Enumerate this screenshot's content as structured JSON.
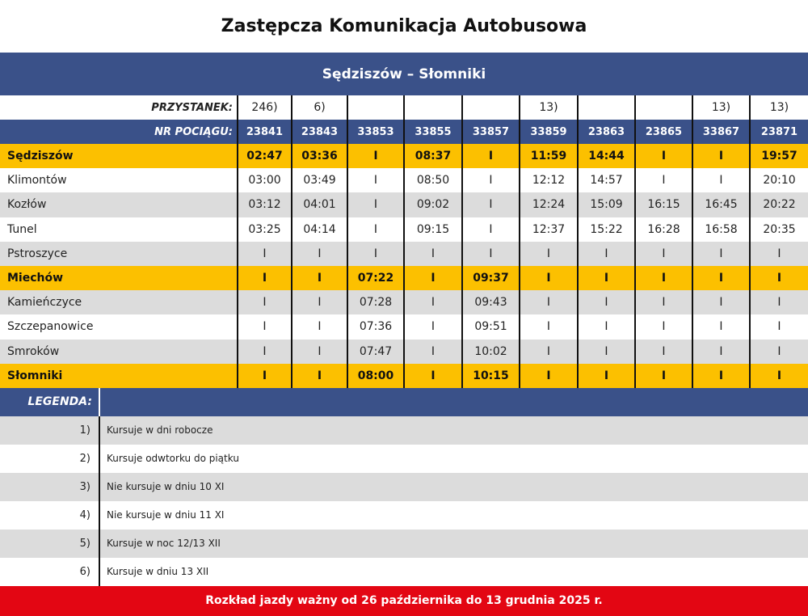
{
  "title": "Zastępcza Komunikacja Autobusowa",
  "route": "Sędziszów – Słomniki",
  "stop_header": "PRZYSTANEK:",
  "train_header": "NR POCIĄGU:",
  "notes": [
    "246)",
    "6)",
    "",
    "",
    "",
    "13)",
    "",
    "",
    "13)",
    "13)"
  ],
  "trains": [
    "23841",
    "23843",
    "33853",
    "33855",
    "33857",
    "33859",
    "23863",
    "23865",
    "33867",
    "23871"
  ],
  "stops": [
    {
      "name": "Sędziszów",
      "style": "yellow",
      "times": [
        "02:47",
        "03:36",
        "I",
        "08:37",
        "I",
        "11:59",
        "14:44",
        "I",
        "I",
        "19:57"
      ]
    },
    {
      "name": "Klimontów",
      "style": "white",
      "times": [
        "03:00",
        "03:49",
        "I",
        "08:50",
        "I",
        "12:12",
        "14:57",
        "I",
        "I",
        "20:10"
      ]
    },
    {
      "name": "Kozłów",
      "style": "gray",
      "times": [
        "03:12",
        "04:01",
        "I",
        "09:02",
        "I",
        "12:24",
        "15:09",
        "16:15",
        "16:45",
        "20:22"
      ]
    },
    {
      "name": "Tunel",
      "style": "white",
      "times": [
        "03:25",
        "04:14",
        "I",
        "09:15",
        "I",
        "12:37",
        "15:22",
        "16:28",
        "16:58",
        "20:35"
      ]
    },
    {
      "name": "Pstroszyce",
      "style": "gray",
      "times": [
        "I",
        "I",
        "I",
        "I",
        "I",
        "I",
        "I",
        "I",
        "I",
        "I"
      ]
    },
    {
      "name": "Miechów",
      "style": "yellow",
      "times": [
        "I",
        "I",
        "07:22",
        "I",
        "09:37",
        "I",
        "I",
        "I",
        "I",
        "I"
      ]
    },
    {
      "name": "Kamieńczyce",
      "style": "gray",
      "times": [
        "I",
        "I",
        "07:28",
        "I",
        "09:43",
        "I",
        "I",
        "I",
        "I",
        "I"
      ]
    },
    {
      "name": "Szczepanowice",
      "style": "white",
      "times": [
        "I",
        "I",
        "07:36",
        "I",
        "09:51",
        "I",
        "I",
        "I",
        "I",
        "I"
      ]
    },
    {
      "name": "Smroków",
      "style": "gray",
      "times": [
        "I",
        "I",
        "07:47",
        "I",
        "10:02",
        "I",
        "I",
        "I",
        "I",
        "I"
      ]
    },
    {
      "name": "Słomniki",
      "style": "yellow",
      "times": [
        "I",
        "I",
        "08:00",
        "I",
        "10:15",
        "I",
        "I",
        "I",
        "I",
        "I"
      ]
    }
  ],
  "legend": {
    "label": "LEGENDA:",
    "items": [
      {
        "num": "1)",
        "text": "Kursuje w dni robocze"
      },
      {
        "num": "2)",
        "text": "Kursuje odwtorku do piątku"
      },
      {
        "num": "3)",
        "text": "Nie kursuje w dniu 10 XI"
      },
      {
        "num": "4)",
        "text": "Nie kursuje w dniu 11 XI"
      },
      {
        "num": "5)",
        "text": "Kursuje w noc 12/13 XII"
      },
      {
        "num": "6)",
        "text": "Kursuje w dniu 13 XII"
      }
    ]
  },
  "footer": "Rozkład jazdy ważny od 26 października do 13 grudnia 2025 r.",
  "colors": {
    "header": "#3a5189",
    "highlight": "#fcc000",
    "footer": "#e30613",
    "stripe": "#dcdcdc"
  }
}
